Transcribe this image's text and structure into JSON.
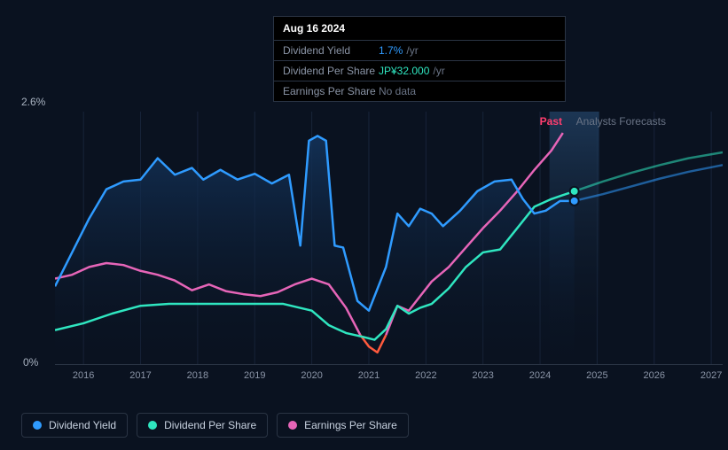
{
  "tooltip": {
    "date": "Aug 16 2024",
    "rows": [
      {
        "label": "Dividend Yield",
        "value": "1.7%",
        "suffix": "/yr",
        "color": "#2f9bff"
      },
      {
        "label": "Dividend Per Share",
        "value": "JP¥32.000",
        "suffix": "/yr",
        "color": "#2fe6c0"
      },
      {
        "label": "Earnings Per Share",
        "value": "No data",
        "suffix": "",
        "color": "#6a7486"
      }
    ]
  },
  "chart": {
    "y_top": "2.6%",
    "y_bottom": "0%",
    "past_label": "Past",
    "past_color": "#ff3d6e",
    "forecast_label": "Analysts Forecasts",
    "x_ticks": [
      "2016",
      "2017",
      "2018",
      "2019",
      "2020",
      "2021",
      "2022",
      "2023",
      "2024",
      "2025",
      "2026",
      "2027"
    ],
    "x_min": 2015.5,
    "x_max": 2027.2,
    "cursor_x": 2024.6,
    "forecast_split_x": 2024.6,
    "background": "#0a1220",
    "grid_color": "#18243a",
    "series": {
      "dividend_yield": {
        "color": "#2f9bff",
        "fill_gradient": [
          "#13335a",
          "#0a1220"
        ],
        "points": [
          [
            2015.5,
            0.8
          ],
          [
            2015.8,
            1.15
          ],
          [
            2016.1,
            1.5
          ],
          [
            2016.4,
            1.8
          ],
          [
            2016.7,
            1.88
          ],
          [
            2017.0,
            1.9
          ],
          [
            2017.3,
            2.12
          ],
          [
            2017.6,
            1.95
          ],
          [
            2017.9,
            2.02
          ],
          [
            2018.1,
            1.9
          ],
          [
            2018.4,
            2.0
          ],
          [
            2018.7,
            1.9
          ],
          [
            2019.0,
            1.96
          ],
          [
            2019.3,
            1.86
          ],
          [
            2019.6,
            1.95
          ],
          [
            2019.8,
            1.22
          ],
          [
            2019.95,
            2.3
          ],
          [
            2020.1,
            2.35
          ],
          [
            2020.25,
            2.3
          ],
          [
            2020.4,
            1.22
          ],
          [
            2020.55,
            1.2
          ],
          [
            2020.8,
            0.65
          ],
          [
            2021.0,
            0.55
          ],
          [
            2021.3,
            1.0
          ],
          [
            2021.5,
            1.55
          ],
          [
            2021.7,
            1.42
          ],
          [
            2021.9,
            1.6
          ],
          [
            2022.1,
            1.55
          ],
          [
            2022.3,
            1.42
          ],
          [
            2022.6,
            1.58
          ],
          [
            2022.9,
            1.78
          ],
          [
            2023.2,
            1.88
          ],
          [
            2023.5,
            1.9
          ],
          [
            2023.7,
            1.7
          ],
          [
            2023.9,
            1.55
          ],
          [
            2024.1,
            1.58
          ],
          [
            2024.35,
            1.68
          ],
          [
            2024.6,
            1.68
          ]
        ],
        "forecast_points": [
          [
            2024.6,
            1.68
          ],
          [
            2025.1,
            1.75
          ],
          [
            2025.6,
            1.83
          ],
          [
            2026.1,
            1.91
          ],
          [
            2026.6,
            1.98
          ],
          [
            2027.2,
            2.05
          ]
        ],
        "marker_at_cursor": 1.68
      },
      "dividend_per_share": {
        "color": "#2fe6c0",
        "points": [
          [
            2015.5,
            0.35
          ],
          [
            2016.0,
            0.42
          ],
          [
            2016.5,
            0.52
          ],
          [
            2017.0,
            0.6
          ],
          [
            2017.5,
            0.62
          ],
          [
            2018.0,
            0.62
          ],
          [
            2018.5,
            0.62
          ],
          [
            2019.0,
            0.62
          ],
          [
            2019.5,
            0.62
          ],
          [
            2020.0,
            0.55
          ],
          [
            2020.3,
            0.4
          ],
          [
            2020.6,
            0.32
          ],
          [
            2020.9,
            0.28
          ],
          [
            2021.1,
            0.25
          ],
          [
            2021.3,
            0.36
          ],
          [
            2021.5,
            0.6
          ],
          [
            2021.7,
            0.52
          ],
          [
            2021.9,
            0.58
          ],
          [
            2022.1,
            0.62
          ],
          [
            2022.4,
            0.78
          ],
          [
            2022.7,
            1.0
          ],
          [
            2023.0,
            1.15
          ],
          [
            2023.3,
            1.18
          ],
          [
            2023.6,
            1.4
          ],
          [
            2023.9,
            1.62
          ],
          [
            2024.2,
            1.7
          ],
          [
            2024.6,
            1.78
          ]
        ],
        "forecast_points": [
          [
            2024.6,
            1.78
          ],
          [
            2025.1,
            1.88
          ],
          [
            2025.6,
            1.97
          ],
          [
            2026.1,
            2.05
          ],
          [
            2026.6,
            2.12
          ],
          [
            2027.2,
            2.18
          ]
        ],
        "marker_at_cursor": 1.78
      },
      "earnings_per_share": {
        "color": "#e665b8",
        "low_color": "#ff5a3d",
        "points": [
          [
            2015.5,
            0.88
          ],
          [
            2015.8,
            0.92
          ],
          [
            2016.1,
            1.0
          ],
          [
            2016.4,
            1.04
          ],
          [
            2016.7,
            1.02
          ],
          [
            2017.0,
            0.96
          ],
          [
            2017.3,
            0.92
          ],
          [
            2017.6,
            0.86
          ],
          [
            2017.9,
            0.76
          ],
          [
            2018.2,
            0.82
          ],
          [
            2018.5,
            0.75
          ],
          [
            2018.8,
            0.72
          ],
          [
            2019.1,
            0.7
          ],
          [
            2019.4,
            0.74
          ],
          [
            2019.7,
            0.82
          ],
          [
            2020.0,
            0.88
          ],
          [
            2020.3,
            0.82
          ],
          [
            2020.6,
            0.58
          ],
          [
            2020.85,
            0.3
          ],
          [
            2021.0,
            0.18
          ],
          [
            2021.15,
            0.12
          ],
          [
            2021.3,
            0.3
          ],
          [
            2021.5,
            0.6
          ],
          [
            2021.7,
            0.55
          ],
          [
            2021.9,
            0.7
          ],
          [
            2022.1,
            0.85
          ],
          [
            2022.4,
            1.0
          ],
          [
            2022.7,
            1.2
          ],
          [
            2023.0,
            1.4
          ],
          [
            2023.3,
            1.58
          ],
          [
            2023.6,
            1.78
          ],
          [
            2023.9,
            2.0
          ],
          [
            2024.2,
            2.2
          ],
          [
            2024.4,
            2.38
          ]
        ]
      }
    },
    "y_domain": [
      0,
      2.6
    ]
  },
  "legend": [
    {
      "label": "Dividend Yield",
      "color": "#2f9bff"
    },
    {
      "label": "Dividend Per Share",
      "color": "#2fe6c0"
    },
    {
      "label": "Earnings Per Share",
      "color": "#e665b8"
    }
  ]
}
